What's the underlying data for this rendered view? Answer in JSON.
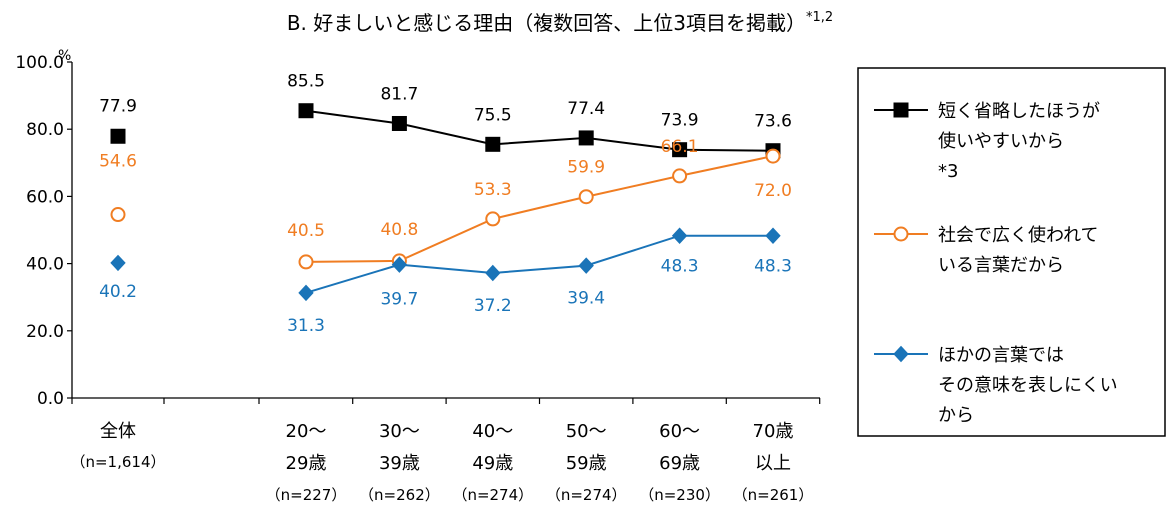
{
  "chart_data": {
    "type": "line",
    "title": "B. 好ましいと感じる理由（複数回答、上位3項目を掲載）",
    "title_superscript": "*1,2",
    "y_unit": "%",
    "ylim": [
      0,
      100
    ],
    "yticks": [
      "100.0",
      "80.0",
      "60.0",
      "40.0",
      "20.0",
      "0.0"
    ],
    "ytick_values": [
      100,
      80,
      60,
      40,
      20,
      0
    ],
    "grid": false,
    "legend_position": "right",
    "total_category": {
      "label": "全体",
      "n": "（n=1,614）"
    },
    "categories": [
      {
        "line1": "20～",
        "line2": "29歳",
        "n": "（n=227）"
      },
      {
        "line1": "30～",
        "line2": "39歳",
        "n": "（n=262）"
      },
      {
        "line1": "40～",
        "line2": "49歳",
        "n": "（n=274）"
      },
      {
        "line1": "50～",
        "line2": "59歳",
        "n": "（n=274）"
      },
      {
        "line1": "60～",
        "line2": "69歳",
        "n": "（n=230）"
      },
      {
        "line1": "70歳",
        "line2": "以上",
        "n": "（n=261）"
      }
    ],
    "series": [
      {
        "name": "短く省略したほうが使いやすいから*3",
        "legend_lines": [
          "短く省略したほうが",
          "使いやすいから",
          "*3"
        ],
        "color": "#000000",
        "marker": "square",
        "total": 77.9,
        "total_label": "77.9",
        "values": [
          85.5,
          81.7,
          75.5,
          77.4,
          73.9,
          73.6
        ],
        "labels": [
          "85.5",
          "81.7",
          "75.5",
          "77.4",
          "73.9",
          "73.6"
        ]
      },
      {
        "name": "社会で広く使われている言葉だから",
        "legend_lines": [
          "社会で広く使われて",
          "いる言葉だから"
        ],
        "color": "#f07d22",
        "marker": "circle-open",
        "total": 54.6,
        "total_label": "54.6",
        "values": [
          40.5,
          40.8,
          53.3,
          59.9,
          66.1,
          72.0
        ],
        "labels": [
          "40.5",
          "40.8",
          "53.3",
          "59.9",
          "66.1",
          "72.0"
        ]
      },
      {
        "name": "ほかの言葉ではその意味を表しにくいから",
        "legend_lines": [
          "ほかの言葉では",
          "その意味を表しにくい",
          "から"
        ],
        "color": "#1a74b8",
        "marker": "diamond",
        "total": 40.2,
        "total_label": "40.2",
        "values": [
          31.3,
          39.7,
          37.2,
          39.4,
          48.3,
          48.3
        ],
        "labels": [
          "31.3",
          "39.7",
          "37.2",
          "39.4",
          "48.3",
          "48.3"
        ]
      }
    ]
  }
}
